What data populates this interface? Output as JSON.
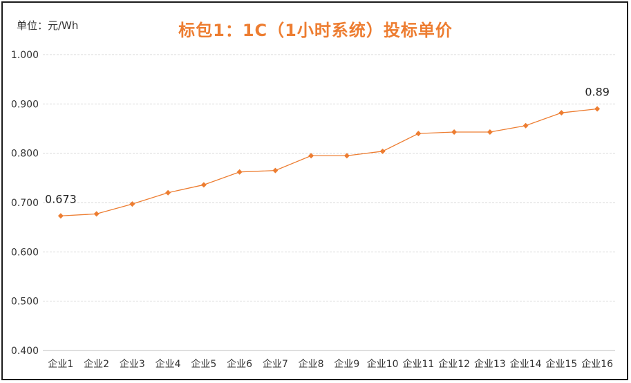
{
  "unit_label": "单位：元/Wh",
  "colors": {
    "title": "#ED7D31",
    "series": "#ED7D31",
    "grid": "#d9d9d9",
    "frame": "#1a1a1a"
  },
  "chart_data": {
    "type": "line",
    "title": "标包1：1C（1小时系统）投标单价",
    "xlabel": "",
    "ylabel": "",
    "ylim": [
      0.4,
      1.0
    ],
    "yticks": [
      "1.000",
      "0.900",
      "0.800",
      "0.700",
      "0.600",
      "0.500",
      "0.400"
    ],
    "grid": true,
    "legend": "none",
    "categories": [
      "企业1",
      "企业2",
      "企业3",
      "企业4",
      "企业5",
      "企业6",
      "企业7",
      "企业8",
      "企业9",
      "企业10",
      "企业11",
      "企业12",
      "企业13",
      "企业14",
      "企业15",
      "企业16"
    ],
    "series": [
      {
        "values": [
          0.673,
          0.677,
          0.697,
          0.72,
          0.736,
          0.762,
          0.765,
          0.795,
          0.795,
          0.804,
          0.84,
          0.843,
          0.843,
          0.856,
          0.882,
          0.89
        ],
        "data_labels": [
          {
            "index": 0,
            "text": "0.673"
          },
          {
            "index": 15,
            "text": "0.89"
          }
        ]
      }
    ]
  }
}
